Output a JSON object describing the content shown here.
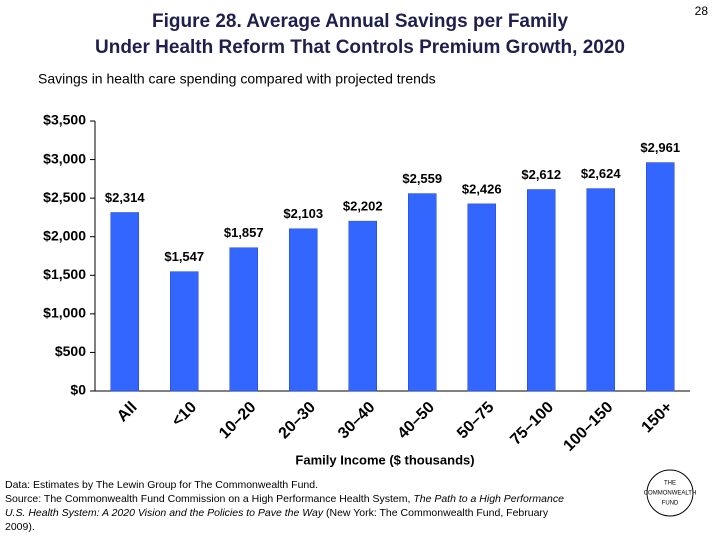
{
  "page_number": "28",
  "chart_data": {
    "type": "bar",
    "title": [
      "Figure 28. Average Annual Savings per Family",
      "Under Health Reform That Controls Premium Growth, 2020"
    ],
    "subtitle": "Savings in health care spending compared with projected trends",
    "x_label": "Family Income ($ thousands)",
    "categories": [
      "All",
      "<10",
      "10–20",
      "20–30",
      "30–40",
      "40–50",
      "50–75",
      "75–100",
      "100–150",
      "150+"
    ],
    "values": [
      2314,
      1547,
      1857,
      2103,
      2202,
      2559,
      2426,
      2612,
      2624,
      2961
    ],
    "value_labels": [
      "$2,314",
      "$1,547",
      "$1,857",
      "$2,103",
      "$2,202",
      "$2,559",
      "$2,426",
      "$2,612",
      "$2,624",
      "$2,961"
    ],
    "color": "#3366ff",
    "ylim": [
      0,
      3500
    ],
    "yticks": [
      {
        "value": 0,
        "label": "$0"
      },
      {
        "value": 500,
        "label": "$500"
      },
      {
        "value": 1000,
        "label": "$1,000"
      },
      {
        "value": 1500,
        "label": "$1,500"
      },
      {
        "value": 2000,
        "label": "$2,000"
      },
      {
        "value": 2500,
        "label": "$2,500"
      },
      {
        "value": 3000,
        "label": "$3,000"
      },
      {
        "value": 3500,
        "label": "$3,500"
      }
    ],
    "grid": false
  },
  "notes": {
    "data": "Data: Estimates by The Lewin Group for The Commonwealth Fund.",
    "source": [
      "Source: The Commonwealth Fund Commission on a High Performance Health System, ",
      "The Path to a High Performance U.S. Health System: A 2020 Vision and the Policies to Pave the Way",
      " (New York: The Commonwealth Fund, February 2009)."
    ]
  },
  "logo": [
    "THE",
    "COMMONWEALTH",
    "FUND"
  ]
}
